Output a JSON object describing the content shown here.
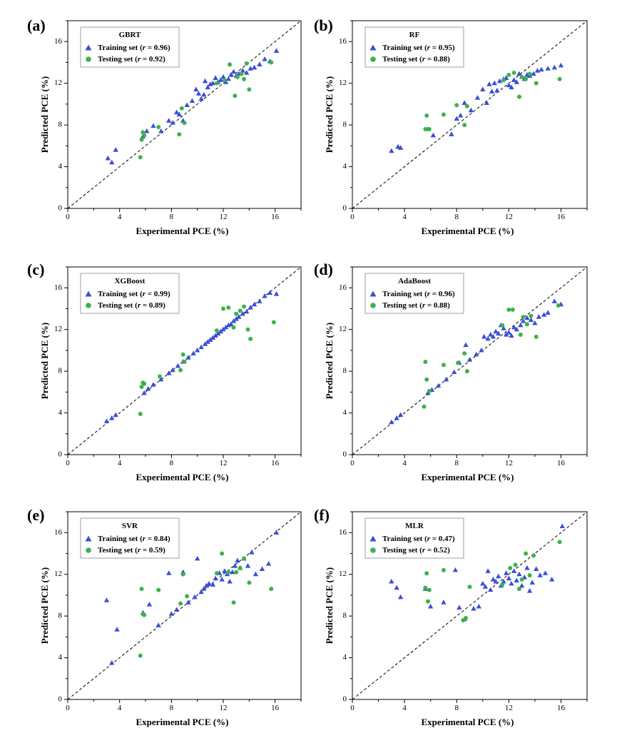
{
  "chart_data": [
    {
      "type": "scatter",
      "panel": "(a)",
      "model": "GBRT",
      "xlabel": "Experimental PCE (%)",
      "ylabel": "Predicted PCE (%)",
      "xlim": [
        0,
        18
      ],
      "ylim": [
        0,
        18
      ],
      "ticks": [
        0,
        4,
        8,
        12,
        16
      ],
      "legend_placement": "top-left",
      "series": [
        {
          "name": "Training set",
          "r": "0.96",
          "marker": "triangle",
          "x": [
            3.1,
            3.4,
            3.7,
            5.8,
            6.1,
            6.6,
            7.2,
            7.8,
            8.1,
            8.4,
            8.6,
            8.9,
            9.2,
            9.6,
            9.9,
            10.1,
            10.3,
            10.5,
            10.6,
            10.8,
            11.0,
            11.2,
            11.4,
            11.6,
            11.8,
            12.0,
            12.2,
            12.4,
            12.6,
            12.8,
            13.0,
            13.2,
            13.5,
            13.8,
            14.1,
            14.4,
            14.8,
            15.2,
            15.6,
            16.1
          ],
          "y": [
            4.8,
            4.4,
            5.6,
            6.9,
            7.4,
            7.9,
            7.4,
            8.4,
            8.2,
            9.2,
            9.0,
            8.4,
            9.9,
            10.3,
            11.4,
            11.0,
            10.5,
            10.9,
            12.2,
            11.6,
            11.9,
            12.0,
            12.5,
            12.1,
            12.3,
            12.6,
            12.1,
            12.4,
            12.8,
            13.1,
            12.7,
            12.9,
            13.2,
            13.0,
            13.4,
            13.5,
            13.8,
            14.3,
            14.1,
            15.1
          ]
        },
        {
          "name": "Testing set",
          "r": "0.92",
          "marker": "circle",
          "x": [
            5.6,
            5.7,
            5.8,
            5.9,
            7.0,
            8.6,
            8.8,
            9.0,
            11.5,
            12.1,
            12.5,
            12.9,
            13.1,
            13.4,
            13.6,
            13.8,
            14.0,
            15.7
          ],
          "y": [
            4.9,
            6.6,
            7.3,
            7.0,
            7.8,
            7.1,
            9.6,
            8.2,
            12.0,
            12.3,
            13.8,
            10.8,
            12.6,
            12.9,
            12.4,
            13.9,
            11.4,
            14.0
          ]
        }
      ]
    },
    {
      "type": "scatter",
      "panel": "(b)",
      "model": "RF",
      "xlabel": "Experimental PCE (%)",
      "ylabel": "Predicted PCE (%)",
      "xlim": [
        0,
        18
      ],
      "ylim": [
        0,
        18
      ],
      "ticks": [
        0,
        4,
        8,
        12,
        16
      ],
      "legend_placement": "top-left",
      "series": [
        {
          "name": "Training set",
          "r": "0.95",
          "marker": "triangle",
          "x": [
            3.0,
            3.5,
            3.7,
            6.2,
            7.6,
            8.0,
            8.3,
            8.6,
            9.1,
            9.6,
            10.0,
            10.3,
            10.5,
            10.7,
            10.9,
            11.1,
            11.3,
            11.6,
            11.8,
            12.0,
            12.2,
            12.4,
            12.6,
            12.8,
            13.0,
            13.2,
            13.4,
            13.6,
            13.9,
            14.2,
            14.5,
            15.0,
            15.5,
            16.0
          ],
          "y": [
            5.5,
            5.9,
            5.8,
            7.0,
            7.1,
            8.6,
            8.9,
            10.1,
            9.4,
            10.6,
            11.4,
            10.1,
            11.9,
            11.2,
            12.0,
            11.3,
            12.2,
            12.4,
            12.5,
            11.8,
            11.6,
            12.3,
            12.1,
            12.9,
            12.6,
            12.4,
            12.8,
            12.7,
            12.9,
            13.2,
            13.3,
            13.4,
            13.5,
            13.7
          ]
        },
        {
          "name": "Testing set",
          "r": "0.88",
          "marker": "circle",
          "x": [
            5.6,
            5.7,
            5.8,
            5.9,
            7.0,
            8.0,
            8.6,
            8.8,
            11.6,
            12.0,
            12.4,
            12.8,
            13.0,
            13.3,
            13.6,
            14.1,
            15.9
          ],
          "y": [
            7.6,
            8.9,
            7.6,
            7.6,
            9.0,
            9.9,
            8.0,
            9.8,
            12.3,
            12.8,
            13.0,
            10.7,
            12.6,
            12.4,
            12.9,
            12.0,
            12.4
          ]
        }
      ]
    },
    {
      "type": "scatter",
      "panel": "(c)",
      "model": "XGBoost",
      "xlabel": "Experimental PCE (%)",
      "ylabel": "Predicted PCE (%)",
      "xlim": [
        0,
        18
      ],
      "ylim": [
        0,
        18
      ],
      "ticks": [
        0,
        4,
        8,
        12,
        16
      ],
      "legend_placement": "top-left",
      "series": [
        {
          "name": "Training set",
          "r": "0.99",
          "marker": "triangle",
          "x": [
            3.0,
            3.4,
            3.7,
            5.9,
            6.2,
            6.6,
            7.2,
            7.8,
            8.1,
            8.5,
            8.9,
            9.3,
            9.7,
            10.0,
            10.3,
            10.6,
            10.8,
            11.0,
            11.2,
            11.4,
            11.6,
            11.8,
            12.0,
            12.2,
            12.4,
            12.6,
            12.8,
            13.0,
            13.2,
            13.5,
            13.8,
            14.1,
            14.4,
            14.8,
            15.2,
            15.6,
            16.1
          ],
          "y": [
            3.2,
            3.5,
            3.8,
            5.9,
            6.3,
            6.7,
            7.2,
            7.8,
            8.1,
            8.5,
            8.9,
            9.3,
            9.7,
            10.0,
            10.3,
            10.6,
            10.8,
            11.0,
            11.2,
            11.4,
            11.6,
            11.8,
            12.0,
            12.2,
            12.4,
            12.5,
            12.8,
            13.0,
            13.2,
            13.5,
            13.7,
            14.1,
            14.4,
            14.7,
            15.2,
            15.5,
            15.4
          ]
        },
        {
          "name": "Testing set",
          "r": "0.89",
          "marker": "circle",
          "x": [
            5.6,
            5.7,
            5.8,
            5.9,
            7.1,
            8.7,
            8.9,
            9.0,
            11.5,
            12.0,
            12.4,
            12.8,
            13.0,
            13.3,
            13.6,
            13.9,
            14.1,
            15.9
          ],
          "y": [
            3.9,
            6.5,
            6.9,
            6.8,
            7.5,
            8.1,
            9.6,
            8.9,
            11.9,
            14.0,
            14.1,
            12.2,
            13.5,
            13.8,
            14.2,
            12.0,
            11.1,
            12.7
          ]
        }
      ]
    },
    {
      "type": "scatter",
      "panel": "(d)",
      "model": "AdaBoost",
      "xlabel": "Experimental PCE (%)",
      "ylabel": "Predicted PCE (%)",
      "xlim": [
        0,
        18
      ],
      "ylim": [
        0,
        18
      ],
      "ticks": [
        0,
        4,
        8,
        12,
        16
      ],
      "legend_placement": "top-left",
      "series": [
        {
          "name": "Training set",
          "r": "0.96",
          "marker": "triangle",
          "x": [
            3.0,
            3.4,
            3.7,
            5.8,
            6.1,
            6.6,
            7.2,
            7.8,
            8.2,
            8.7,
            9.0,
            9.5,
            9.9,
            10.1,
            10.4,
            10.6,
            10.8,
            11.0,
            11.2,
            11.4,
            11.6,
            11.8,
            12.0,
            12.2,
            12.4,
            12.6,
            12.9,
            13.1,
            13.4,
            13.7,
            14.0,
            14.3,
            14.7,
            15.0,
            15.5,
            16.0
          ],
          "y": [
            3.1,
            3.5,
            3.8,
            5.9,
            6.2,
            6.6,
            7.2,
            7.9,
            8.8,
            10.5,
            9.1,
            9.6,
            10.0,
            11.3,
            11.1,
            11.5,
            11.3,
            11.8,
            11.6,
            12.4,
            12.1,
            11.5,
            11.7,
            11.4,
            12.2,
            12.0,
            12.4,
            12.8,
            13.1,
            12.9,
            12.6,
            13.2,
            13.4,
            13.6,
            14.7,
            14.4
          ]
        },
        {
          "name": "Testing set",
          "r": "0.88",
          "marker": "circle",
          "x": [
            5.5,
            5.6,
            5.7,
            5.9,
            7.0,
            8.1,
            8.6,
            8.8,
            11.5,
            12.0,
            12.3,
            12.9,
            13.1,
            13.4,
            13.7,
            14.1,
            15.8
          ],
          "y": [
            4.6,
            8.9,
            7.2,
            6.1,
            8.6,
            8.8,
            9.7,
            8.0,
            12.4,
            13.9,
            13.9,
            11.5,
            13.2,
            12.5,
            13.3,
            11.3,
            14.3
          ]
        }
      ]
    },
    {
      "type": "scatter",
      "panel": "(e)",
      "model": "SVR",
      "xlabel": "Experimental PCE (%)",
      "ylabel": "Predicted PCE (%)",
      "xlim": [
        0,
        18
      ],
      "ylim": [
        0,
        18
      ],
      "ticks": [
        0,
        4,
        8,
        12,
        16
      ],
      "legend_placement": "top-left",
      "series": [
        {
          "name": "Training set",
          "r": "0.84",
          "marker": "triangle",
          "x": [
            3.0,
            3.4,
            3.8,
            5.8,
            6.3,
            7.0,
            7.8,
            8.0,
            8.4,
            8.9,
            9.3,
            9.8,
            10.0,
            10.3,
            10.5,
            10.7,
            10.9,
            11.2,
            11.4,
            11.7,
            11.9,
            12.1,
            12.3,
            12.5,
            12.7,
            12.9,
            13.1,
            13.3,
            13.6,
            13.9,
            14.2,
            14.5,
            15.0,
            15.5,
            16.1
          ],
          "y": [
            9.5,
            3.5,
            6.7,
            8.3,
            9.1,
            7.1,
            12.1,
            8.2,
            8.6,
            12.2,
            9.3,
            9.8,
            13.5,
            10.3,
            10.6,
            10.9,
            11.1,
            11.0,
            11.6,
            12.1,
            11.5,
            12.3,
            12.0,
            11.3,
            12.2,
            12.8,
            13.3,
            12.6,
            13.5,
            12.8,
            14.1,
            12.0,
            12.5,
            13.0,
            16.0
          ]
        },
        {
          "name": "Testing set",
          "r": "0.59",
          "marker": "circle",
          "x": [
            5.6,
            5.7,
            5.8,
            5.9,
            7.0,
            8.7,
            8.9,
            9.2,
            11.5,
            11.9,
            12.4,
            12.8,
            13.0,
            13.3,
            13.6,
            14.0,
            15.7
          ],
          "y": [
            4.2,
            10.6,
            8.2,
            8.1,
            10.5,
            9.2,
            12.0,
            9.9,
            12.1,
            14.0,
            12.2,
            9.3,
            12.2,
            12.6,
            13.5,
            11.2,
            10.6
          ]
        }
      ]
    },
    {
      "type": "scatter",
      "panel": "(f)",
      "model": "MLR",
      "xlabel": "Experimental PCE (%)",
      "ylabel": "Predicted PCE (%)",
      "xlim": [
        0,
        18
      ],
      "ylim": [
        0,
        18
      ],
      "ticks": [
        0,
        4,
        8,
        12,
        16
      ],
      "legend_placement": "top-left",
      "series": [
        {
          "name": "Training set",
          "r": "0.47",
          "marker": "triangle",
          "x": [
            3.0,
            3.4,
            3.7,
            5.6,
            6.0,
            7.0,
            7.9,
            8.2,
            8.6,
            9.3,
            9.7,
            10.0,
            10.2,
            10.4,
            10.6,
            10.8,
            11.0,
            11.2,
            11.4,
            11.6,
            11.8,
            12.0,
            12.2,
            12.4,
            12.6,
            12.8,
            13.0,
            13.2,
            13.4,
            13.6,
            13.8,
            14.1,
            14.4,
            14.8,
            15.3,
            16.1
          ],
          "y": [
            11.3,
            10.7,
            9.8,
            10.6,
            8.9,
            9.3,
            12.4,
            8.8,
            7.7,
            8.7,
            8.9,
            11.1,
            10.8,
            12.3,
            10.5,
            11.5,
            11.3,
            11.8,
            10.9,
            11.3,
            12.1,
            11.6,
            11.1,
            12.3,
            11.4,
            12.0,
            10.9,
            11.7,
            12.6,
            10.4,
            11.2,
            12.5,
            11.9,
            12.1,
            11.5,
            16.6
          ]
        },
        {
          "name": "Testing set",
          "r": "0.52",
          "marker": "circle",
          "x": [
            5.6,
            5.7,
            5.8,
            5.9,
            7.0,
            8.5,
            8.7,
            9.0,
            11.5,
            12.1,
            12.5,
            12.8,
            13.0,
            13.3,
            13.6,
            13.9,
            15.9
          ],
          "y": [
            10.7,
            12.1,
            9.4,
            10.5,
            12.4,
            7.6,
            7.8,
            10.8,
            11.0,
            12.6,
            12.9,
            10.6,
            11.5,
            14.0,
            11.9,
            13.8,
            15.1
          ]
        }
      ]
    }
  ]
}
